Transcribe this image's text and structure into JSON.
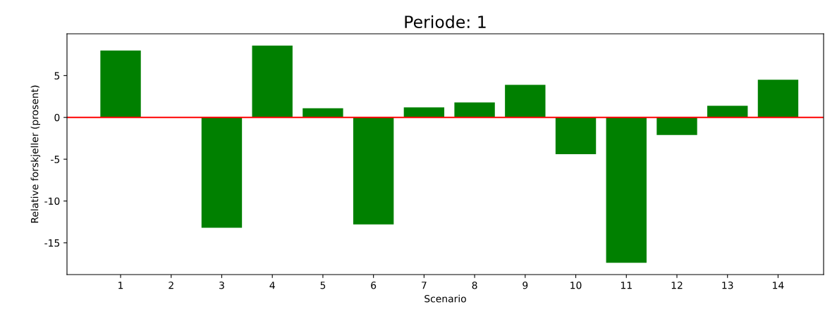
{
  "chart_data": {
    "type": "bar",
    "title": "Periode: 1",
    "xlabel": "Scenario",
    "ylabel": "Relative forskjeller (prosent)",
    "x": [
      1,
      2,
      3,
      4,
      5,
      6,
      7,
      8,
      9,
      10,
      11,
      12,
      13,
      14
    ],
    "values": [
      8.0,
      0,
      -13.2,
      8.6,
      1.1,
      -12.8,
      1.2,
      1.8,
      3.9,
      -4.4,
      -17.4,
      -2.1,
      1.4,
      4.5
    ],
    "color": "#008000",
    "xlim": [
      -0.06,
      14.9
    ],
    "xticks": [
      1,
      2,
      3,
      4,
      5,
      6,
      7,
      8,
      9,
      10,
      11,
      12,
      13,
      14
    ],
    "ylim": [
      -18.8,
      10.0
    ],
    "yticks": [
      -15,
      -10,
      -5,
      0,
      5
    ],
    "ref_lines": [
      {
        "axis": "y",
        "value": 0,
        "color": "#ff0000"
      }
    ],
    "grid": false
  }
}
